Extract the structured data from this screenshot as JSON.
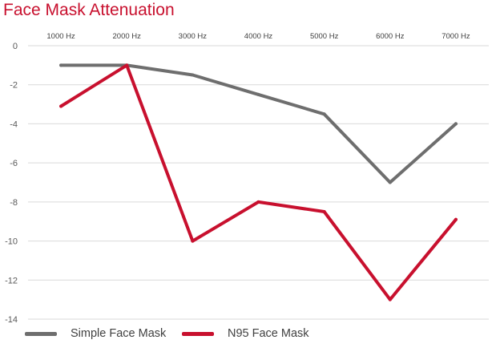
{
  "chart_data": {
    "type": "line",
    "title": "Face Mask Attenuation",
    "categories": [
      "1000 Hz",
      "2000 Hz",
      "3000 Hz",
      "4000 Hz",
      "5000 Hz",
      "6000 Hz",
      "7000 Hz"
    ],
    "series": [
      {
        "name": "Simple Face Mask",
        "color": "#6e6e6e",
        "values": [
          -1,
          -1,
          -1.5,
          -2.5,
          -3.5,
          -7,
          -4
        ]
      },
      {
        "name": "N95 Face Mask",
        "color": "#c8102e",
        "values": [
          -3.1,
          -1,
          -10,
          -8,
          -8.5,
          -13,
          -8.9
        ]
      }
    ],
    "ylim": [
      -14,
      0
    ],
    "yticks": [
      0,
      -2,
      -4,
      -6,
      -8,
      -10,
      -12,
      -14
    ],
    "x_axis_position": "top",
    "grid": true,
    "legend": "bottom-left"
  }
}
